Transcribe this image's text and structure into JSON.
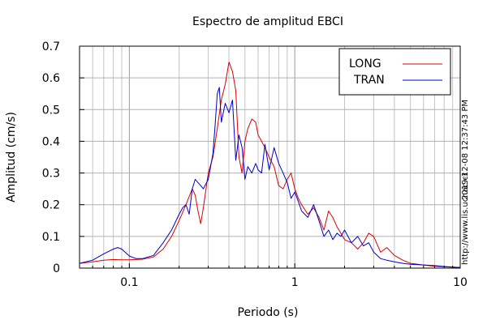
{
  "chart_data": {
    "type": "line",
    "title": "Espectro de amplitud EBCI",
    "xlabel": "Periodo (s)",
    "ylabel": "Amplitud (cm/s)",
    "x_scale": "log",
    "xlim": [
      0.05,
      10
    ],
    "ylim": [
      0,
      0.7
    ],
    "x_major_ticks": [
      0.1,
      1,
      10
    ],
    "x_major_tick_labels": [
      "0.1",
      "1",
      "10"
    ],
    "y_ticks": [
      0,
      0.1,
      0.2,
      0.3,
      0.4,
      0.5,
      0.6,
      0.7
    ],
    "y_tick_labels": [
      "0",
      "0.1",
      "0.2",
      "0.3",
      "0.4",
      "0.5",
      "0.6",
      "0.7"
    ],
    "grid": true,
    "legend_position": "top-right",
    "timestamp": "2019-12-08 12:37:43 PM",
    "source_url": "http://www.lis.ucr.ac.cr",
    "series": [
      {
        "name": "LONG",
        "color": "#dd0000",
        "x": [
          0.05,
          0.06,
          0.07,
          0.08,
          0.09,
          0.1,
          0.12,
          0.14,
          0.16,
          0.18,
          0.2,
          0.22,
          0.24,
          0.25,
          0.26,
          0.27,
          0.28,
          0.3,
          0.32,
          0.34,
          0.36,
          0.38,
          0.4,
          0.42,
          0.44,
          0.46,
          0.48,
          0.5,
          0.52,
          0.55,
          0.58,
          0.6,
          0.63,
          0.66,
          0.7,
          0.75,
          0.8,
          0.85,
          0.9,
          0.95,
          1.0,
          1.05,
          1.1,
          1.2,
          1.3,
          1.4,
          1.5,
          1.6,
          1.7,
          1.8,
          1.9,
          2.0,
          2.2,
          2.4,
          2.6,
          2.8,
          3.0,
          3.3,
          3.6,
          4.0,
          4.5,
          5.0,
          6.0,
          7.0,
          8.0,
          9.0,
          10.0
        ],
        "y": [
          0.015,
          0.02,
          0.025,
          0.027,
          0.026,
          0.026,
          0.028,
          0.035,
          0.06,
          0.1,
          0.15,
          0.2,
          0.25,
          0.23,
          0.18,
          0.14,
          0.19,
          0.3,
          0.35,
          0.44,
          0.53,
          0.58,
          0.65,
          0.62,
          0.56,
          0.35,
          0.3,
          0.4,
          0.44,
          0.47,
          0.46,
          0.42,
          0.4,
          0.38,
          0.35,
          0.32,
          0.26,
          0.25,
          0.28,
          0.3,
          0.25,
          0.22,
          0.2,
          0.17,
          0.19,
          0.16,
          0.12,
          0.18,
          0.16,
          0.13,
          0.11,
          0.09,
          0.08,
          0.06,
          0.08,
          0.11,
          0.1,
          0.05,
          0.065,
          0.04,
          0.025,
          0.015,
          0.01,
          0.006,
          0.004,
          0.003,
          0.002
        ]
      },
      {
        "name": "TRAN",
        "color": "#0000cc",
        "x": [
          0.05,
          0.06,
          0.07,
          0.08,
          0.085,
          0.09,
          0.1,
          0.11,
          0.12,
          0.14,
          0.16,
          0.18,
          0.2,
          0.21,
          0.22,
          0.23,
          0.24,
          0.25,
          0.26,
          0.27,
          0.28,
          0.3,
          0.32,
          0.33,
          0.34,
          0.35,
          0.36,
          0.38,
          0.4,
          0.42,
          0.44,
          0.46,
          0.48,
          0.5,
          0.52,
          0.55,
          0.58,
          0.6,
          0.63,
          0.66,
          0.7,
          0.75,
          0.8,
          0.85,
          0.9,
          0.95,
          1.0,
          1.05,
          1.1,
          1.2,
          1.3,
          1.4,
          1.5,
          1.6,
          1.7,
          1.8,
          1.9,
          2.0,
          2.2,
          2.4,
          2.6,
          2.8,
          3.0,
          3.3,
          3.6,
          4.0,
          4.5,
          5.0,
          6.0,
          7.0,
          8.0,
          9.0,
          10.0
        ],
        "y": [
          0.015,
          0.025,
          0.045,
          0.06,
          0.065,
          0.06,
          0.038,
          0.03,
          0.03,
          0.04,
          0.08,
          0.12,
          0.17,
          0.19,
          0.2,
          0.17,
          0.25,
          0.28,
          0.27,
          0.26,
          0.25,
          0.28,
          0.36,
          0.45,
          0.55,
          0.57,
          0.46,
          0.52,
          0.49,
          0.53,
          0.34,
          0.42,
          0.38,
          0.28,
          0.32,
          0.3,
          0.33,
          0.31,
          0.3,
          0.39,
          0.31,
          0.38,
          0.33,
          0.3,
          0.27,
          0.22,
          0.24,
          0.21,
          0.18,
          0.16,
          0.2,
          0.15,
          0.1,
          0.12,
          0.09,
          0.11,
          0.1,
          0.12,
          0.08,
          0.1,
          0.07,
          0.08,
          0.05,
          0.03,
          0.025,
          0.02,
          0.015,
          0.012,
          0.01,
          0.008,
          0.005,
          0.003,
          0.002
        ]
      }
    ]
  }
}
